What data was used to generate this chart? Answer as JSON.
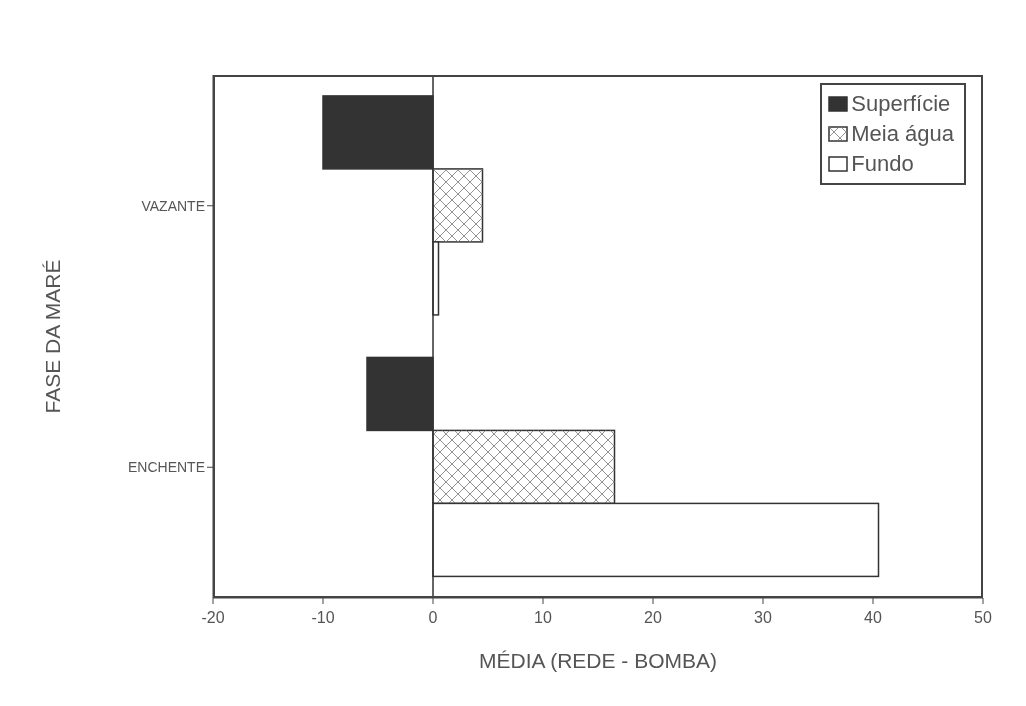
{
  "chart_data": {
    "type": "bar",
    "orientation": "horizontal",
    "xlabel": "MÉDIA (REDE - BOMBA)",
    "ylabel": "FASE DA MARÉ",
    "categories": [
      "VAZANTE",
      "ENCHENTE"
    ],
    "series": [
      {
        "name": "Superfície",
        "color": "#333333",
        "values": [
          -10,
          -6
        ]
      },
      {
        "name": "Meia água",
        "color": "#ffffff",
        "values": [
          4.5,
          16.5
        ]
      },
      {
        "name": "Fundo",
        "color": "#ffffff",
        "values": [
          0.5,
          40.5
        ]
      }
    ],
    "xlim": [
      -20,
      50
    ],
    "xticks": [
      -20,
      -10,
      0,
      10,
      20,
      30,
      40,
      50
    ],
    "legend": "top right"
  }
}
